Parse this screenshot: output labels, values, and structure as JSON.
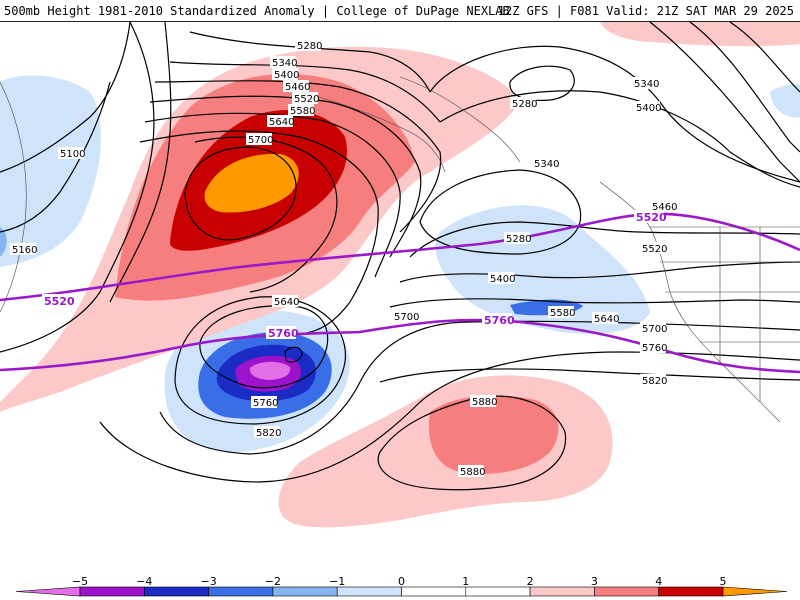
{
  "header": {
    "title": "500mb Height 1981-2010 Standardized Anomaly | College of DuPage NEXLAB",
    "run_info": "12Z GFS | F081 Valid: 21Z SAT MAR 29 2025"
  },
  "contour_labels": {
    "c5280_top": "5280",
    "c5340_top": "5340",
    "c5400_top": "5400",
    "c5460_top": "5460",
    "c5520_top": "5520",
    "c5580_top": "5580",
    "c5640_top": "5640",
    "c5700_top": "5700",
    "c5100": "5100",
    "c5160": "5160",
    "c5280_ne": "5280",
    "c5340_ne": "5340",
    "c5400_ne": "5400",
    "c5340_mid": "5340",
    "c5280_mid": "5280",
    "c5400_mid": "5400",
    "c5460_e": "5460",
    "c5520_e": "5520",
    "c5580_mid": "5580",
    "c5640_e": "5640",
    "c5700_e": "5700",
    "c5760_e": "5760",
    "c5820_e": "5820",
    "c5640_low": "5640",
    "c5700_low": "5700",
    "c5760_low": "5760",
    "c5820_low": "5820",
    "c5880_a": "5880",
    "c5880_b": "5880"
  },
  "reference_labels": {
    "r5520_w": "5520",
    "r5520_e": "5520",
    "r5760_w": "5760",
    "r5760_e": "5760"
  },
  "colorbar": {
    "ticks": [
      "−5",
      "−4",
      "−3",
      "−2",
      "−1",
      "0",
      "1",
      "2",
      "3",
      "4",
      "5"
    ],
    "colors": [
      "#e36fe6",
      "#9e12cc",
      "#1a2cc4",
      "#3a6ee6",
      "#86b4f0",
      "#cfe3fb",
      "#ffffff",
      "#ffffff",
      "#fcc8c8",
      "#f77e7e",
      "#c80000",
      "#ff9900"
    ]
  },
  "colors": {
    "reference_line": "#9b19c9",
    "contour": "#000000"
  }
}
